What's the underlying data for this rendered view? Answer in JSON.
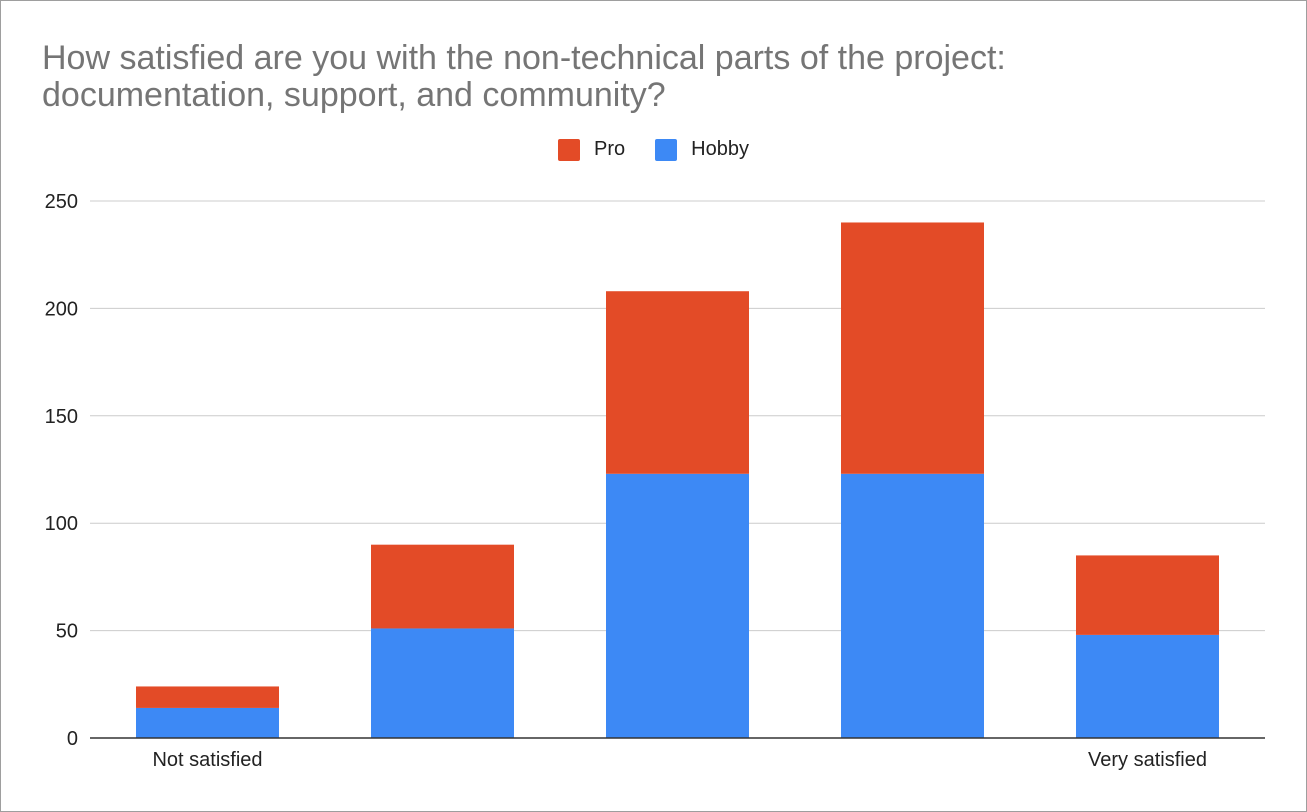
{
  "chart_data": {
    "type": "bar",
    "stacked": true,
    "title": "How satisfied are you with the non-technical parts of the project: documentation, support, and community?",
    "title_lines": [
      "How satisfied are you with the non-technical parts of the project:",
      "documentation, support, and community?"
    ],
    "categories": [
      "Not satisfied",
      "",
      "",
      "",
      "Very satisfied"
    ],
    "series": [
      {
        "name": "Hobby",
        "color": "#3d89f5",
        "values": [
          14,
          51,
          123,
          123,
          48
        ]
      },
      {
        "name": "Pro",
        "color": "#e34b27",
        "values": [
          10,
          39,
          85,
          117,
          37
        ]
      }
    ],
    "legend_order": [
      "Pro",
      "Hobby"
    ],
    "legend_position": "top",
    "xlabel": "",
    "ylabel": "",
    "ylim": [
      0,
      250
    ],
    "yticks": [
      "0",
      "50",
      "100",
      "150",
      "200",
      "250"
    ],
    "grid": true
  }
}
